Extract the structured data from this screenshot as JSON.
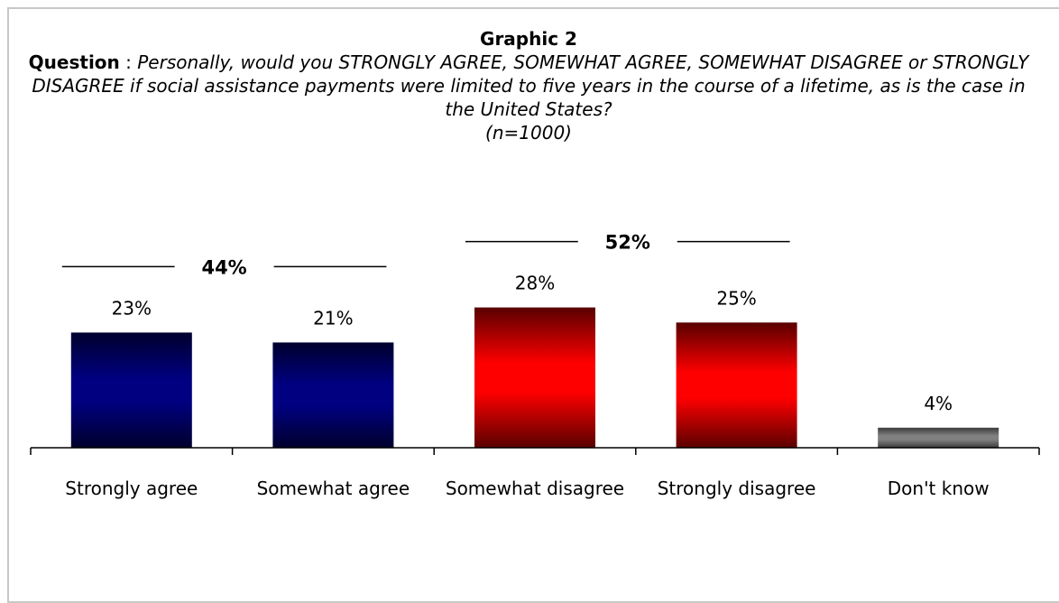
{
  "title": "Graphic 2",
  "question": {
    "label": "Question",
    "separator": " : ",
    "text": "Personally, would you STRONGLY AGREE, SOMEWHAT AGREE, SOMEWHAT DISAGREE or STRONGLY DISAGREE if social assistance payments were limited to five years in the course of a lifetime, as is the case in the United States?",
    "sample_size": "(n=1000)"
  },
  "colors": {
    "agree": "#000080",
    "disagree": "#ff0000",
    "dont_know": "#808080"
  },
  "chart_data": {
    "type": "bar",
    "title": "Graphic 2",
    "categories": [
      "Strongly agree",
      "Somewhat agree",
      "Somewhat disagree",
      "Strongly disagree",
      "Don't know"
    ],
    "values": [
      23,
      21,
      28,
      25,
      4
    ],
    "value_labels": [
      "23%",
      "21%",
      "28%",
      "25%",
      "4%"
    ],
    "bar_colors": [
      "agree",
      "agree",
      "disagree",
      "disagree",
      "dont_know"
    ],
    "ylim": [
      0,
      32
    ],
    "grid": false,
    "legend": "none",
    "groups": [
      {
        "label": "44%",
        "value": 44,
        "categories": [
          "Strongly agree",
          "Somewhat agree"
        ]
      },
      {
        "label": "52%",
        "value": 52,
        "categories": [
          "Somewhat disagree",
          "Strongly disagree"
        ]
      }
    ]
  }
}
